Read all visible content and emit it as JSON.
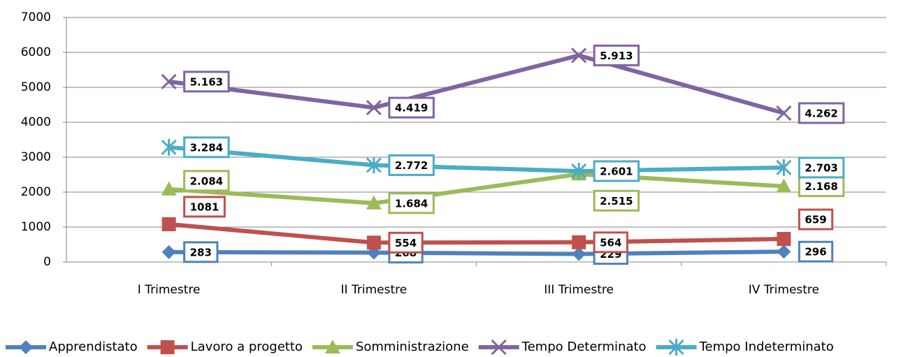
{
  "chart_data": {
    "type": "line",
    "categories": [
      "I Trimestre",
      "II Trimestre",
      "III Trimestre",
      "IV Trimestre"
    ],
    "series": [
      {
        "name": "Apprendistato",
        "color": "#4f81bd",
        "marker": "diamond",
        "values": [
          283,
          268,
          229,
          296
        ]
      },
      {
        "name": "Lavoro a progetto",
        "color": "#c0504d",
        "marker": "square",
        "values": [
          1081,
          554,
          564,
          659
        ]
      },
      {
        "name": "Somministrazione",
        "color": "#9bbb59",
        "marker": "triangle",
        "values": [
          2084,
          1684,
          2515,
          2168
        ],
        "value_labels": [
          "2.084",
          "1.684",
          "2.515",
          "2.168"
        ]
      },
      {
        "name": "Tempo Determinato",
        "color": "#8064a2",
        "marker": "x",
        "values": [
          5163,
          4419,
          5913,
          4262
        ],
        "value_labels": [
          "5.163",
          "4.419",
          "5.913",
          "4.262"
        ]
      },
      {
        "name": "Tempo Indeterminato",
        "color": "#4bacc6",
        "marker": "star",
        "values": [
          3284,
          2772,
          2601,
          2703
        ],
        "value_labels": [
          "3.284",
          "2.772",
          "2.601",
          "2.703"
        ]
      }
    ],
    "ylim": [
      0,
      7000
    ],
    "yticks": [
      0,
      1000,
      2000,
      3000,
      4000,
      5000,
      6000,
      7000
    ],
    "grid": true,
    "legend": "bottom"
  }
}
